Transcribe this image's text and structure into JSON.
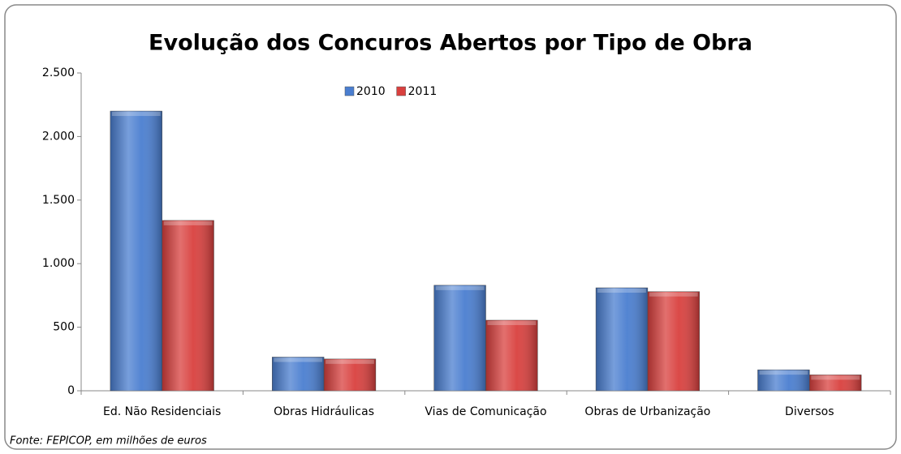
{
  "chart_data": {
    "type": "bar",
    "title": "Evolução dos Concuros Abertos por Tipo de Obra",
    "categories": [
      "Ed. Não Residenciais",
      "Obras Hidráulicas",
      "Vias de Comunicação",
      "Obras de Urbanização",
      "Diversos"
    ],
    "series": [
      {
        "name": "2010",
        "color": "#4a7ed0",
        "values": [
          2200,
          265,
          830,
          810,
          165
        ]
      },
      {
        "name": "2011",
        "color": "#d9403e",
        "values": [
          1340,
          250,
          555,
          780,
          125
        ]
      }
    ],
    "ylim": [
      0,
      2500
    ],
    "yticks": [
      0,
      500,
      {
        "value": 1000,
        "label": "1.000"
      },
      {
        "value": 1500,
        "label": "1.500"
      },
      {
        "value": 2000,
        "label": "2.000"
      },
      {
        "value": 2500,
        "label": "2.500"
      }
    ],
    "grid": false,
    "legend": "top",
    "source": "Fonte: FEPICOP, em milhões  de euros"
  }
}
